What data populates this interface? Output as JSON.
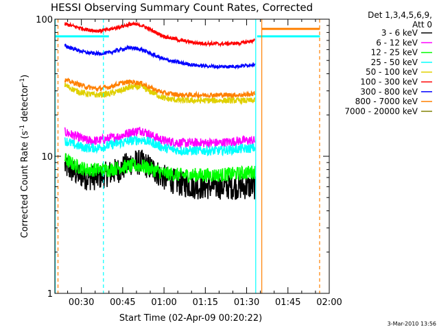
{
  "chart_data": {
    "type": "line",
    "title": "HESSI Observing Summary Count Rates, Corrected",
    "xlabel": "Start Time (02-Apr-09 00:20:22)",
    "ylabel_main": "Corrected Count Rate (s",
    "ylabel_sup1": "-1",
    "ylabel_mid": " detector",
    "ylabel_sup2": "-1",
    "ylabel_end": ")",
    "y_scale": "log",
    "ylim": [
      1,
      100
    ],
    "y_ticks": [
      {
        "value": 1,
        "label": "1"
      },
      {
        "value": 10,
        "label": "10"
      },
      {
        "value": 100,
        "label": "100"
      }
    ],
    "x_ticks": [
      {
        "value": 30,
        "label": "00:30"
      },
      {
        "value": 45,
        "label": "00:45"
      },
      {
        "value": 60,
        "label": "01:00"
      },
      {
        "value": 75,
        "label": "01:15"
      },
      {
        "value": 90,
        "label": "01:30"
      },
      {
        "value": 105,
        "label": "01:45"
      },
      {
        "value": 120,
        "label": "02:00"
      }
    ],
    "xlim": [
      20.37,
      120
    ],
    "legend_header": [
      "Det 1,3,4,5,6,9,",
      "Att 0"
    ],
    "legend_placement": "right",
    "series": [
      {
        "name": "3 - 6 keV",
        "color": "#000000",
        "noise": 0.22,
        "points": [
          [
            24,
            8.5
          ],
          [
            28,
            7.5
          ],
          [
            32,
            7
          ],
          [
            36,
            7
          ],
          [
            40,
            7.5
          ],
          [
            44,
            8
          ],
          [
            48,
            9
          ],
          [
            52,
            9
          ],
          [
            56,
            8
          ],
          [
            60,
            7
          ],
          [
            66,
            6.3
          ],
          [
            72,
            6
          ],
          [
            80,
            6
          ],
          [
            88,
            6
          ],
          [
            93,
            6
          ]
        ]
      },
      {
        "name": "6 - 12 keV",
        "color": "#ff00ff",
        "noise": 0.08,
        "points": [
          [
            24,
            15
          ],
          [
            28,
            14
          ],
          [
            32,
            13
          ],
          [
            36,
            13
          ],
          [
            40,
            13.5
          ],
          [
            44,
            14
          ],
          [
            48,
            15
          ],
          [
            52,
            15.5
          ],
          [
            56,
            14
          ],
          [
            60,
            13
          ],
          [
            66,
            12.5
          ],
          [
            72,
            12.5
          ],
          [
            80,
            12.5
          ],
          [
            88,
            13
          ],
          [
            93,
            13
          ]
        ]
      },
      {
        "name": "12 - 25 keV",
        "color": "#00ff00",
        "noise": 0.12,
        "points": [
          [
            24,
            9.5
          ],
          [
            28,
            8.5
          ],
          [
            32,
            8
          ],
          [
            36,
            8
          ],
          [
            40,
            8
          ],
          [
            44,
            8.3
          ],
          [
            48,
            8.5
          ],
          [
            52,
            8.5
          ],
          [
            56,
            8
          ],
          [
            60,
            7.5
          ],
          [
            66,
            7.3
          ],
          [
            72,
            7.3
          ],
          [
            80,
            7.3
          ],
          [
            88,
            7.5
          ],
          [
            93,
            7.7
          ]
        ]
      },
      {
        "name": "25 - 50 keV",
        "color": "#00ffff",
        "noise": 0.08,
        "points": [
          [
            24,
            13
          ],
          [
            28,
            12
          ],
          [
            32,
            11.5
          ],
          [
            36,
            11.5
          ],
          [
            40,
            12
          ],
          [
            44,
            12.5
          ],
          [
            48,
            13
          ],
          [
            52,
            13.2
          ],
          [
            56,
            12.5
          ],
          [
            60,
            11.5
          ],
          [
            66,
            11
          ],
          [
            72,
            11
          ],
          [
            80,
            11
          ],
          [
            88,
            11.3
          ],
          [
            93,
            11.5
          ]
        ]
      },
      {
        "name": "50 - 100 keV",
        "color": "#e0d000",
        "noise": 0.05,
        "points": [
          [
            24,
            33
          ],
          [
            28,
            30
          ],
          [
            32,
            28.5
          ],
          [
            36,
            28
          ],
          [
            40,
            28.5
          ],
          [
            44,
            30
          ],
          [
            48,
            32
          ],
          [
            52,
            32
          ],
          [
            56,
            29
          ],
          [
            60,
            26.5
          ],
          [
            66,
            25.5
          ],
          [
            72,
            25.5
          ],
          [
            80,
            25.5
          ],
          [
            88,
            25.5
          ],
          [
            93,
            25.5
          ]
        ]
      },
      {
        "name": "100 - 300 keV",
        "color": "#ff0000",
        "noise": 0.03,
        "points": [
          [
            24,
            92
          ],
          [
            28,
            88
          ],
          [
            32,
            84
          ],
          [
            36,
            82
          ],
          [
            40,
            84
          ],
          [
            44,
            88
          ],
          [
            48,
            92
          ],
          [
            52,
            90
          ],
          [
            56,
            82
          ],
          [
            60,
            75
          ],
          [
            66,
            70
          ],
          [
            72,
            67
          ],
          [
            80,
            66
          ],
          [
            88,
            67
          ],
          [
            93,
            70
          ]
        ]
      },
      {
        "name": "300 - 800 keV",
        "color": "#0000ff",
        "noise": 0.03,
        "points": [
          [
            24,
            64
          ],
          [
            28,
            60
          ],
          [
            32,
            57
          ],
          [
            36,
            56
          ],
          [
            40,
            57
          ],
          [
            44,
            60
          ],
          [
            48,
            62
          ],
          [
            52,
            60
          ],
          [
            56,
            55
          ],
          [
            60,
            51
          ],
          [
            66,
            48
          ],
          [
            72,
            46
          ],
          [
            80,
            45
          ],
          [
            88,
            45.5
          ],
          [
            93,
            47
          ]
        ]
      },
      {
        "name": "800 - 7000 keV",
        "color": "#ff8000",
        "noise": 0.04,
        "points": [
          [
            24,
            36
          ],
          [
            28,
            34
          ],
          [
            32,
            32
          ],
          [
            36,
            31
          ],
          [
            40,
            32
          ],
          [
            44,
            34
          ],
          [
            48,
            35
          ],
          [
            52,
            34
          ],
          [
            56,
            31
          ],
          [
            60,
            29
          ],
          [
            66,
            28
          ],
          [
            72,
            28
          ],
          [
            80,
            28
          ],
          [
            88,
            28
          ],
          [
            93,
            28.5
          ]
        ]
      },
      {
        "name": "7000 - 20000 keV",
        "color": "#808000",
        "noise": 0,
        "points": []
      }
    ],
    "vertical_lines": [
      {
        "x": 20.5,
        "color": "#00ffff",
        "style": "solid"
      },
      {
        "x": 21.5,
        "color": "#ff8000",
        "style": "dashed"
      },
      {
        "x": 38,
        "color": "#00ffff",
        "style": "dashed"
      },
      {
        "x": 93.3,
        "color": "#00ffff",
        "style": "solid"
      },
      {
        "x": 95.5,
        "color": "#ff8000",
        "style": "solid"
      },
      {
        "x": 116.5,
        "color": "#ff8000",
        "style": "dashed"
      }
    ],
    "horizontal_segments": [
      {
        "x0": 20.37,
        "x1": 40,
        "y": 75,
        "color": "#00ffff",
        "width": 3
      },
      {
        "x0": 93.8,
        "x1": 116.6,
        "y": 75,
        "color": "#00ffff",
        "width": 3
      },
      {
        "x0": 95.5,
        "x1": 116.6,
        "y": 85,
        "color": "#ff8000",
        "width": 3
      }
    ],
    "footer_date": "3-Mar-2010 13:56"
  }
}
